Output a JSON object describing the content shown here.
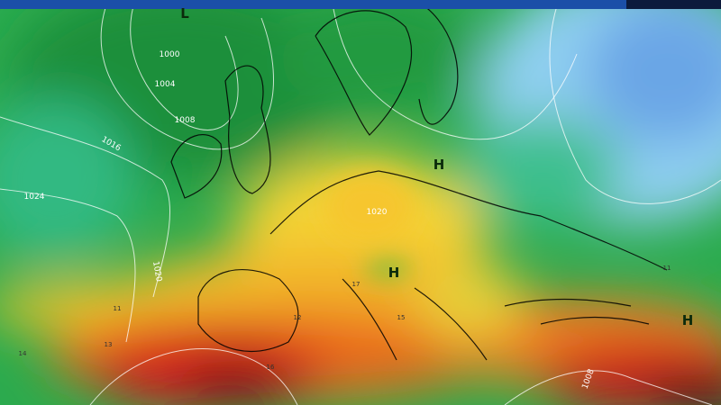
{
  "map": {
    "pressure_systems": [
      "L",
      "H",
      "H",
      "H"
    ],
    "isobar_labels": [
      "1000",
      "1004",
      "1008",
      "1016",
      "1024",
      "1020",
      "1020",
      "1008"
    ],
    "temperature_labels": [
      "11",
      "13",
      "14",
      "16",
      "12",
      "15",
      "11",
      "17"
    ]
  }
}
